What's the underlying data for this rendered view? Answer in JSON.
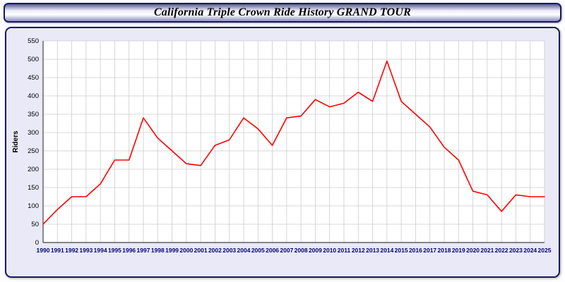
{
  "title": "California Triple Crown Ride History GRAND TOUR",
  "chart_data": {
    "type": "line",
    "title": "California Triple Crown Ride History GRAND TOUR",
    "xlabel": "",
    "ylabel": "Riders",
    "ylim": [
      0,
      550
    ],
    "ytick_step": 50,
    "grid": true,
    "legend": "none",
    "line_color": "#ff0000",
    "x": [
      1990,
      1991,
      1992,
      1993,
      1994,
      1995,
      1996,
      1997,
      1998,
      1999,
      2000,
      2001,
      2002,
      2003,
      2004,
      2005,
      2006,
      2007,
      2008,
      2009,
      2010,
      2011,
      2012,
      2013,
      2014,
      2015,
      2016,
      2017,
      2018,
      2019,
      2020,
      2021,
      2022,
      2023,
      2024,
      2025
    ],
    "values": [
      50,
      90,
      125,
      125,
      160,
      225,
      225,
      340,
      285,
      250,
      215,
      210,
      265,
      280,
      340,
      310,
      265,
      340,
      345,
      390,
      370,
      380,
      410,
      385,
      495,
      385,
      350,
      315,
      260,
      225,
      140,
      130,
      85,
      130,
      125,
      125
    ]
  },
  "colors": {
    "panel_background": "#e9e9f7",
    "plot_background": "#ffffff",
    "gridline": "#cccccc",
    "axis": "#444444",
    "x_tick_label": "#00007a",
    "y_tick_label": "#000000",
    "series_line": "#ff0000",
    "border": "#1a1a5e"
  }
}
